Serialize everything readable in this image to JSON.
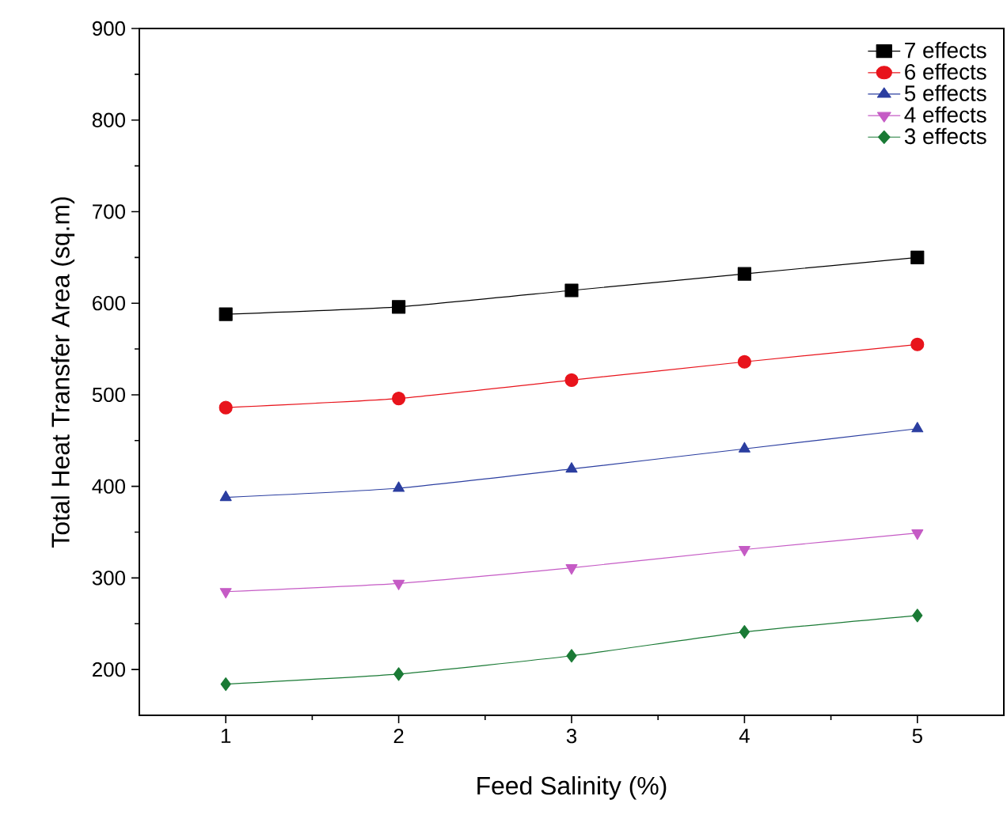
{
  "chart_data": {
    "type": "line",
    "xlabel": "Feed Salinity (%)",
    "ylabel": "Total Heat Transfer Area (sq.m)",
    "x": [
      1,
      2,
      3,
      4,
      5
    ],
    "xlim": [
      0.5,
      5.5
    ],
    "xticks": [
      1,
      2,
      3,
      4,
      5
    ],
    "ylim": [
      150,
      900
    ],
    "yticks": [
      200,
      300,
      400,
      500,
      600,
      700,
      800,
      900
    ],
    "legend": "top right",
    "grid": false,
    "line_style": "solid",
    "series": [
      {
        "name": "7 effects",
        "color": "#000000",
        "marker": "square",
        "values": [
          588,
          596,
          614,
          632,
          650
        ]
      },
      {
        "name": "6 effects",
        "color": "#e8141c",
        "marker": "circle",
        "values": [
          486,
          496,
          516,
          536,
          555
        ]
      },
      {
        "name": "5 effects",
        "color": "#2b3ea0",
        "marker": "triangle",
        "values": [
          388,
          398,
          419,
          441,
          463
        ]
      },
      {
        "name": "4 effects",
        "color": "#c55bc5",
        "marker": "triangle-down",
        "values": [
          285,
          294,
          311,
          331,
          349
        ]
      },
      {
        "name": "3 effects",
        "color": "#1a7a35",
        "marker": "diamond",
        "values": [
          184,
          195,
          215,
          241,
          259
        ]
      }
    ]
  }
}
